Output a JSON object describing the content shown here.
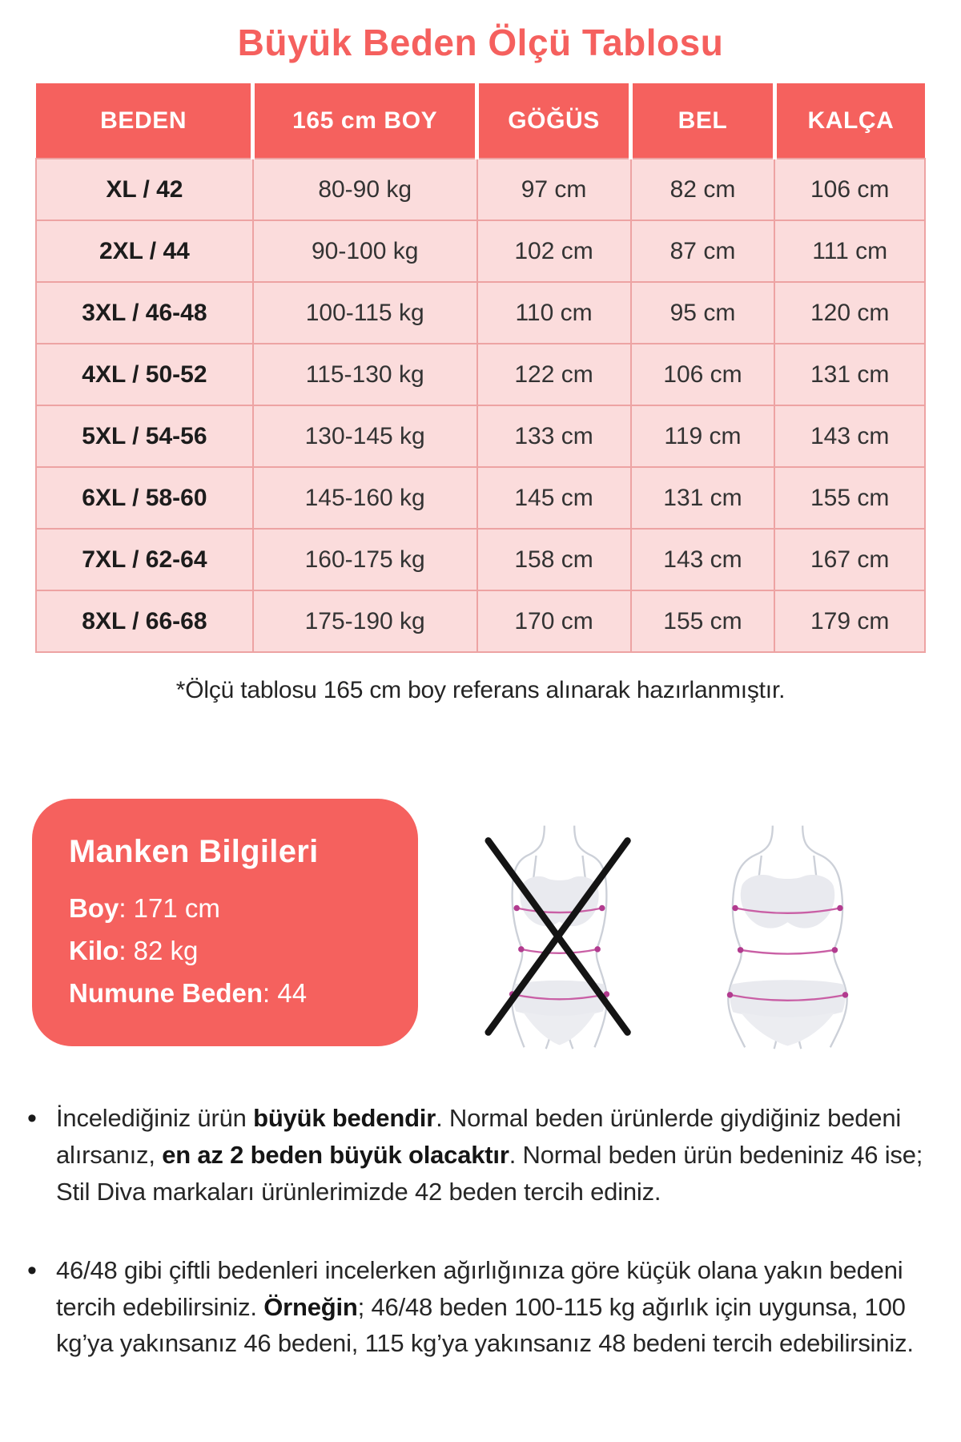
{
  "title": "Büyük Beden Ölçü Tablosu",
  "colors": {
    "coral": "#f5615e",
    "cell_pink": "#fbdcdc",
    "grid_pink": "#eda3a3",
    "text_dark": "#282828",
    "figure_fill": "#e9eaef",
    "figure_outline": "#ccd0d8",
    "measure_line_pink": "#c95fa5",
    "cross_black": "#141414"
  },
  "table": {
    "headers": [
      "BEDEN",
      "165 cm BOY",
      "GÖĞÜS",
      "BEL",
      "KALÇA"
    ],
    "rows": [
      [
        "XL / 42",
        "80-90 kg",
        "97 cm",
        "82 cm",
        "106 cm"
      ],
      [
        "2XL / 44",
        "90-100 kg",
        "102 cm",
        "87 cm",
        "111 cm"
      ],
      [
        "3XL / 46-48",
        "100-115 kg",
        "110 cm",
        "95 cm",
        "120 cm"
      ],
      [
        "4XL / 50-52",
        "115-130 kg",
        "122 cm",
        "106 cm",
        "131 cm"
      ],
      [
        "5XL / 54-56",
        "130-145 kg",
        "133 cm",
        "119 cm",
        "143 cm"
      ],
      [
        "6XL / 58-60",
        "145-160 kg",
        "145 cm",
        "131 cm",
        "155 cm"
      ],
      [
        "7XL / 62-64",
        "160-175 kg",
        "158 cm",
        "143 cm",
        "167 cm"
      ],
      [
        "8XL / 66-68",
        "175-190 kg",
        "170 cm",
        "155 cm",
        "179 cm"
      ]
    ]
  },
  "note": "*Ölçü tablosu 165 cm boy referans alınarak hazırlanmıştır.",
  "model_info": {
    "title": "Manken Bilgileri",
    "lines": [
      {
        "segments": [
          {
            "text": "Boy",
            "bold": true
          },
          {
            "text": ": 171 cm",
            "bold": false
          }
        ]
      },
      {
        "segments": [
          {
            "text": "Kilo",
            "bold": true
          },
          {
            "text": ": 82 kg",
            "bold": false
          }
        ]
      },
      {
        "segments": [
          {
            "text": "Numune Beden",
            "bold": true
          },
          {
            "text": ": 44",
            "bold": false
          }
        ]
      }
    ]
  },
  "figures": {
    "crossed": "slim-measurement-figure-crossed-out",
    "correct": "plus-size-measurement-figure"
  },
  "bullets": [
    {
      "segments": [
        {
          "text": "İncelediğiniz ürün ",
          "bold": false
        },
        {
          "text": "büyük bedendir",
          "bold": true
        },
        {
          "text": ". Normal beden ürünlerde giydiğiniz bedeni alırsanız, ",
          "bold": false
        },
        {
          "text": "en az 2 beden büyük olacaktır",
          "bold": true
        },
        {
          "text": ". Normal beden ürün bedeniniz 46 ise; Stil Diva markaları ürünlerimizde 42 beden tercih ediniz.",
          "bold": false
        }
      ]
    },
    {
      "segments": [
        {
          "text": "46/48 gibi çiftli bedenleri incelerken ağırlığınıza göre küçük olana yakın bedeni tercih edebilirsiniz. ",
          "bold": false
        },
        {
          "text": "Örneğin",
          "bold": true
        },
        {
          "text": "; 46/48 beden 100-115 kg ağırlık için uygunsa, 100 kg’ya yakınsanız 46 bedeni, 115 kg’ya yakınsanız 48 bedeni tercih edebilirsiniz.",
          "bold": false
        }
      ]
    }
  ]
}
